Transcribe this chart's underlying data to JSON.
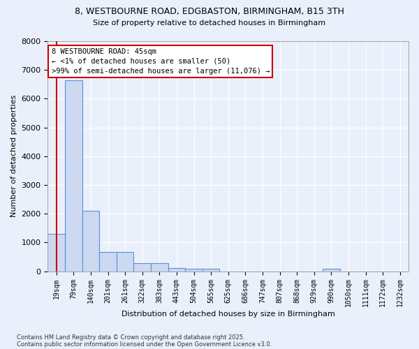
{
  "title_line1": "8, WESTBOURNE ROAD, EDGBASTON, BIRMINGHAM, B15 3TH",
  "title_line2": "Size of property relative to detached houses in Birmingham",
  "xlabel": "Distribution of detached houses by size in Birmingham",
  "ylabel": "Number of detached properties",
  "bar_color": "#ccd9f0",
  "bar_edge_color": "#5b8fd4",
  "background_color": "#eaf0fb",
  "grid_color": "#ffffff",
  "annotation_box_color": "#ffffff",
  "annotation_border_color": "#cc0000",
  "vline_color": "#cc0000",
  "vline_x": 0,
  "annotation_text_line1": "8 WESTBOURNE ROAD: 45sqm",
  "annotation_text_line2": "← <1% of detached houses are smaller (50)",
  "annotation_text_line3": ">99% of semi-detached houses are larger (11,076) →",
  "footer_line1": "Contains HM Land Registry data © Crown copyright and database right 2025.",
  "footer_line2": "Contains public sector information licensed under the Open Government Licence v3.0.",
  "categories": [
    "19sqm",
    "79sqm",
    "140sqm",
    "201sqm",
    "261sqm",
    "322sqm",
    "383sqm",
    "443sqm",
    "504sqm",
    "565sqm",
    "625sqm",
    "686sqm",
    "747sqm",
    "807sqm",
    "868sqm",
    "929sqm",
    "990sqm",
    "1050sqm",
    "1111sqm",
    "1172sqm",
    "1232sqm"
  ],
  "values": [
    1300,
    6650,
    2100,
    680,
    680,
    290,
    290,
    120,
    80,
    80,
    0,
    0,
    0,
    0,
    0,
    0,
    80,
    0,
    0,
    0,
    0
  ],
  "ylim": [
    0,
    8000
  ],
  "yticks": [
    0,
    1000,
    2000,
    3000,
    4000,
    5000,
    6000,
    7000,
    8000
  ]
}
